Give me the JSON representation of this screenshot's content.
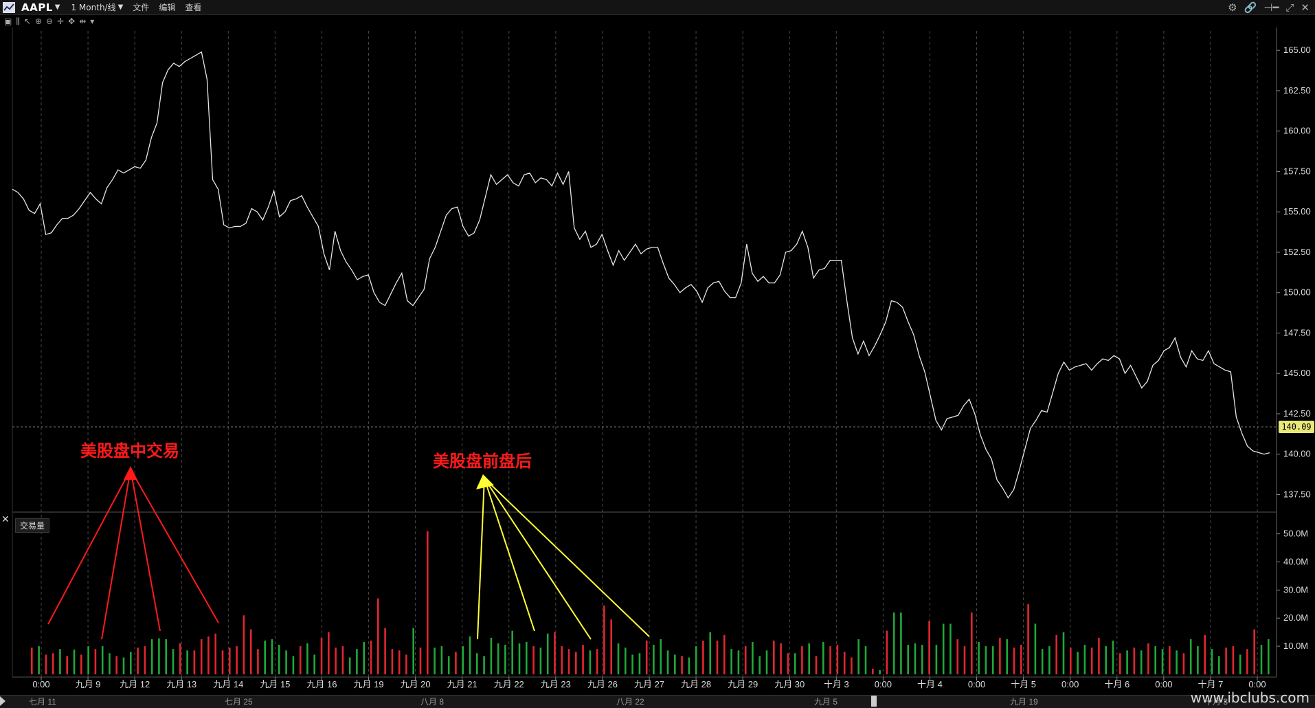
{
  "topbar": {
    "symbol": "AAPL",
    "period": "1 Month/线",
    "menus": [
      "文件",
      "编辑",
      "查看"
    ]
  },
  "price_axis": {
    "ticks": [
      "165.00",
      "162.50",
      "160.00",
      "157.50",
      "155.00",
      "152.50",
      "150.00",
      "147.50",
      "145.00",
      "142.50",
      "140.00",
      "137.50"
    ],
    "current": "140.09"
  },
  "volume_panel": {
    "label": "交易量",
    "ticks": [
      "50.0M",
      "40.0M",
      "30.0M",
      "20.0M",
      "10.0M"
    ]
  },
  "time_axis": {
    "labels": [
      "0:00",
      "九月 9",
      "九月 12",
      "九月 13",
      "九月 14",
      "九月 15",
      "九月 16",
      "九月 19",
      "九月 20",
      "九月 21",
      "九月 22",
      "九月 23",
      "九月 26",
      "九月 27",
      "九月 28",
      "九月 29",
      "九月 30",
      "十月 3",
      "0:00",
      "十月 4",
      "0:00",
      "十月 5",
      "0:00",
      "十月 6",
      "0:00",
      "十月 7",
      "0:00"
    ]
  },
  "navigator": {
    "labels": [
      "七月 11",
      "七月 25",
      "八月 8",
      "八月 22",
      "九月 5",
      "九月 19",
      "十月 3"
    ]
  },
  "annotations": {
    "regular_hours": "美股盘中交易",
    "extended_hours": "美股盘前盘后"
  },
  "watermark": "www.ibclubs.com",
  "colors": {
    "background": "#000000",
    "price_line": "#e6e6e6",
    "volume_up": "#1fa83a",
    "volume_down": "#e3262e",
    "annotation_red": "#ff1a1a",
    "annotation_yellow": "#ffff33",
    "price_tag": "#e8e87a"
  },
  "icons": [
    "settings-icon",
    "link-icon",
    "pin-icon",
    "restore-icon",
    "close-icon"
  ],
  "chart_data": {
    "type": "line",
    "title": "",
    "ylim": [
      136.5,
      166.2
    ],
    "price_close": [
      156.4,
      156.2,
      155.8,
      155.1,
      154.9,
      155.5,
      153.6,
      153.7,
      154.2,
      154.6,
      154.6,
      154.8,
      155.2,
      155.7,
      156.2,
      155.8,
      155.5,
      156.5,
      157.0,
      157.6,
      157.4,
      157.6,
      157.8,
      157.7,
      158.2,
      159.6,
      160.5,
      163.0,
      163.8,
      164.2,
      164.0,
      164.3,
      164.5,
      164.7,
      164.9,
      163.2,
      157.0,
      156.4,
      154.2,
      154.0,
      154.1,
      154.1,
      154.3,
      155.2,
      155.0,
      154.5,
      155.3,
      156.3,
      154.7,
      155.0,
      155.7,
      155.8,
      156.0,
      155.3,
      154.7,
      154.1,
      152.4,
      151.4,
      153.8,
      152.6,
      151.9,
      151.4,
      150.8,
      151.0,
      151.1,
      150.0,
      149.4,
      149.2,
      149.9,
      150.6,
      151.2,
      149.5,
      149.2,
      149.7,
      150.2,
      152.1,
      152.8,
      153.8,
      154.8,
      155.2,
      155.3,
      154.1,
      153.5,
      153.7,
      154.5,
      155.9,
      157.3,
      156.7,
      157.0,
      157.3,
      156.8,
      156.6,
      157.3,
      157.4,
      156.8,
      157.1,
      157.0,
      156.6,
      157.4,
      156.7,
      157.5,
      154.0,
      153.3,
      153.8,
      152.8,
      153.0,
      153.6,
      152.6,
      151.7,
      152.6,
      152.0,
      152.5,
      153.0,
      152.4,
      152.7,
      152.8,
      152.8,
      151.8,
      150.9,
      150.5,
      150.0,
      150.3,
      150.5,
      150.1,
      149.4,
      150.3,
      150.6,
      150.7,
      150.1,
      149.7,
      149.7,
      150.6,
      153.0,
      151.2,
      150.7,
      151.0,
      150.6,
      150.6,
      151.1,
      152.5,
      152.6,
      153.0,
      153.8,
      152.8,
      150.9,
      151.4,
      151.5,
      152.0,
      152.0,
      152.0,
      149.5,
      147.2,
      146.2,
      147.0,
      146.1,
      146.7,
      147.4,
      148.2,
      149.5,
      149.4,
      149.1,
      148.2,
      147.4,
      146.1,
      145.1,
      143.6,
      142.1,
      141.5,
      142.2,
      142.3,
      142.4,
      143.0,
      143.4,
      142.5,
      141.2,
      140.3,
      139.7,
      138.4,
      137.9,
      137.3,
      137.8,
      139.0,
      140.3,
      141.6,
      142.1,
      142.7,
      142.6,
      143.8,
      145.0,
      145.7,
      145.2,
      145.4,
      145.5,
      145.6,
      145.2,
      145.6,
      145.9,
      145.8,
      146.1,
      145.9,
      145.0,
      145.5,
      144.8,
      144.1,
      144.5,
      145.5,
      145.8,
      146.4,
      146.6,
      147.2,
      146.0,
      145.4,
      146.4,
      145.9,
      145.8,
      146.4,
      145.6,
      145.4,
      145.2,
      145.1,
      142.3,
      141.3,
      140.5,
      140.2,
      140.1,
      140.0,
      140.09
    ],
    "volume_M": [
      9.5,
      10.0,
      7.0,
      7.5,
      9.0,
      6.5,
      8.8,
      7.0,
      10.0,
      9.0,
      10.0,
      7.5,
      6.5,
      6.0,
      8.0,
      9.5,
      10.0,
      12.5,
      12.8,
      12.5,
      9.0,
      11.0,
      8.5,
      8.5,
      12.5,
      13.5,
      14.5,
      8.5,
      9.5,
      10.0,
      21.0,
      16.0,
      9.0,
      12.0,
      12.5,
      10.5,
      8.5,
      6.5,
      10.0,
      11.0,
      7.0,
      13.0,
      15.0,
      9.5,
      10.0,
      6.0,
      9.0,
      11.5,
      12.0,
      27.0,
      16.5,
      9.0,
      8.5,
      7.0,
      16.5,
      9.5,
      51.0,
      9.5,
      10.0,
      6.5,
      8.0,
      10.0,
      13.5,
      7.5,
      6.5,
      13.0,
      11.0,
      10.5,
      15.5,
      11.0,
      11.5,
      10.0,
      9.5,
      14.5,
      15.0,
      10.0,
      9.0,
      8.0,
      10.5,
      8.5,
      9.0,
      24.5,
      19.5,
      11.0,
      9.5,
      7.0,
      7.5,
      12.0,
      10.5,
      12.5,
      8.5,
      7.0,
      6.5,
      6.0,
      10.0,
      12.0,
      15.0,
      12.0,
      14.0,
      9.0,
      8.5,
      10.0,
      11.5,
      6.5,
      8.5,
      12.0,
      11.0,
      7.5,
      7.5,
      10.0,
      11.0,
      6.5,
      11.5,
      10.0,
      10.5,
      8.0,
      6.0,
      12.5,
      10.0,
      2.0,
      1.5,
      15.5,
      22.0,
      22.0,
      10.5,
      11.0,
      10.5,
      19.0,
      10.5,
      18.0,
      18.0,
      12.5,
      10.0,
      22.0,
      11.5,
      10.0,
      10.0,
      13.0,
      12.5,
      9.5,
      10.5,
      25.0,
      18.0,
      9.0,
      10.0,
      14.0,
      15.0,
      9.5,
      8.0,
      10.5,
      9.5,
      13.0,
      10.0,
      12.0,
      7.5,
      8.5,
      9.5,
      8.5,
      11.0,
      10.0,
      9.0,
      10.0,
      8.5,
      7.5,
      12.5,
      10.0,
      14.0,
      9.0,
      6.5,
      9.5,
      10.0,
      7.0,
      9.0,
      16.0,
      10.5,
      12.5
    ],
    "volume_up": [
      0,
      1,
      0,
      0,
      1,
      0,
      1,
      0,
      1,
      0,
      1,
      1,
      0,
      1,
      1,
      0,
      0,
      1,
      1,
      1,
      1,
      0,
      1,
      0,
      0,
      0,
      0,
      0,
      0,
      0,
      0,
      0,
      0,
      1,
      1,
      1,
      1,
      1,
      0,
      1,
      1,
      0,
      0,
      0,
      0,
      1,
      1,
      1,
      0,
      0,
      0,
      0,
      0,
      0,
      1,
      0,
      0,
      1,
      1,
      1,
      0,
      1,
      1,
      1,
      1,
      1,
      1,
      1,
      1,
      1,
      1,
      0,
      1,
      1,
      0,
      0,
      0,
      0,
      0,
      1,
      0,
      0,
      0,
      1,
      1,
      1,
      1,
      0,
      1,
      1,
      1,
      1,
      0,
      1,
      1,
      0,
      1,
      0,
      0,
      1,
      1,
      0,
      1,
      1,
      1,
      0,
      0,
      0,
      1,
      0,
      1,
      0,
      1,
      0,
      0,
      0,
      0,
      1,
      1,
      0,
      1,
      0,
      1,
      1,
      1,
      1,
      1,
      0,
      1,
      1,
      1,
      0,
      0,
      0,
      1,
      1,
      1,
      0,
      1,
      0,
      0,
      0,
      1,
      1,
      1,
      0,
      1,
      0,
      1,
      1,
      0,
      0,
      1,
      1,
      0,
      1,
      0,
      1,
      0,
      1,
      1,
      0,
      1,
      0,
      1,
      1,
      0,
      1,
      1,
      0,
      0,
      1,
      0,
      0,
      1,
      1
    ]
  }
}
